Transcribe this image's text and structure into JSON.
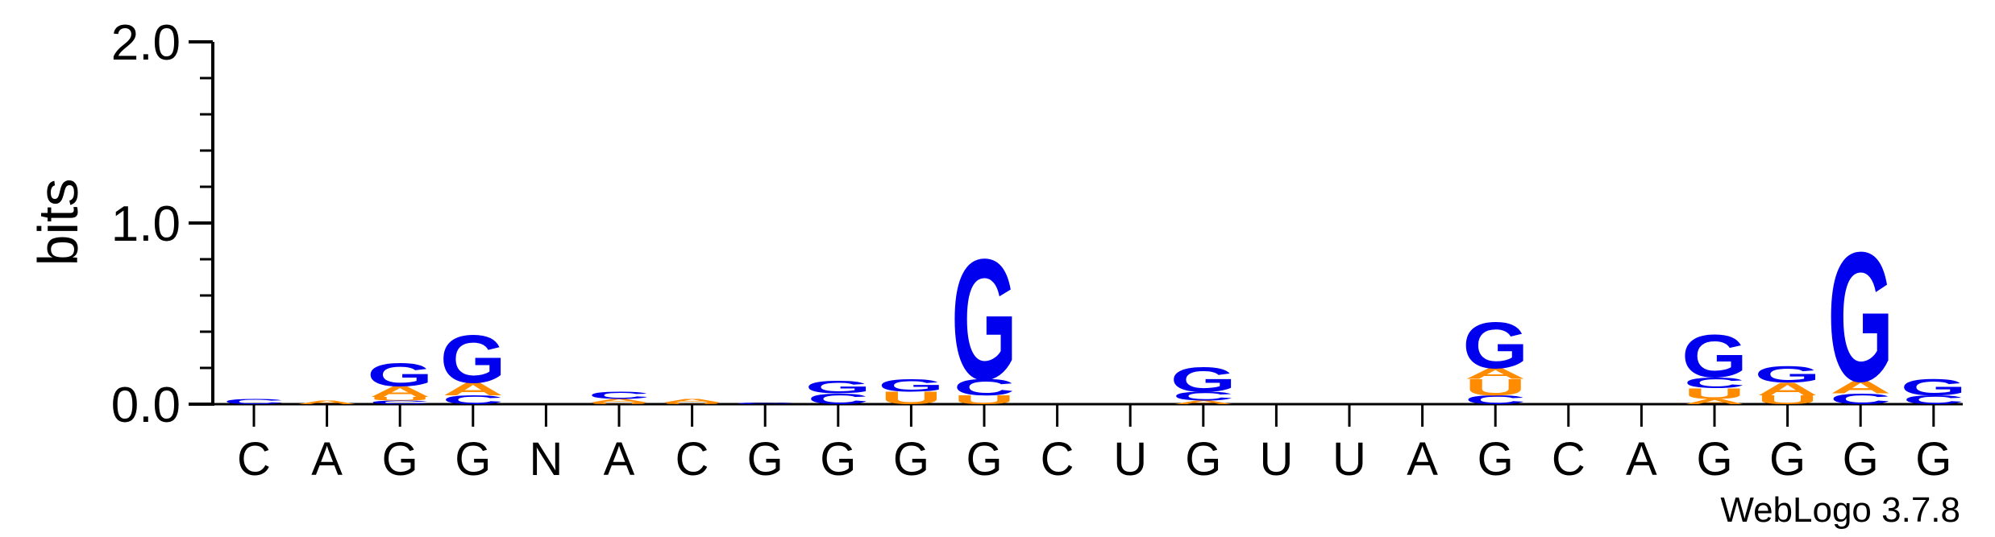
{
  "chart_data": {
    "type": "sequence-logo",
    "ylabel": "bits",
    "ylim": [
      0,
      2.0
    ],
    "y_ticks": [
      "0.0",
      "1.0",
      "2.0"
    ],
    "y_tick_values": [
      0,
      1.0,
      2.0
    ],
    "positions": [
      "C",
      "A",
      "G",
      "G",
      "N",
      "A",
      "C",
      "G",
      "G",
      "G",
      "G",
      "C",
      "U",
      "G",
      "U",
      "U",
      "A",
      "G",
      "C",
      "A",
      "G",
      "G",
      "G",
      "G"
    ],
    "colors": {
      "G": "#0000ee",
      "C": "#0000ee",
      "A": "#ff8c00",
      "U": "#ff8c00"
    },
    "stacks": [
      [
        {
          "letter": "C",
          "bits": 0.03
        }
      ],
      [
        {
          "letter": "A",
          "bits": 0.02
        }
      ],
      [
        {
          "letter": "C",
          "bits": 0.02
        },
        {
          "letter": "U",
          "bits": 0.02
        },
        {
          "letter": "A",
          "bits": 0.06
        },
        {
          "letter": "G",
          "bits": 0.13
        }
      ],
      [
        {
          "letter": "C",
          "bits": 0.05
        },
        {
          "letter": "A",
          "bits": 0.07
        },
        {
          "letter": "G",
          "bits": 0.27
        }
      ],
      [],
      [
        {
          "letter": "U",
          "bits": 0.01
        },
        {
          "letter": "A",
          "bits": 0.02
        },
        {
          "letter": "C",
          "bits": 0.04
        }
      ],
      [
        {
          "letter": "U",
          "bits": 0.01
        },
        {
          "letter": "A",
          "bits": 0.02
        }
      ],
      [
        {
          "letter": "C",
          "bits": 0.01
        }
      ],
      [
        {
          "letter": "C",
          "bits": 0.06
        },
        {
          "letter": "G",
          "bits": 0.07
        }
      ],
      [
        {
          "letter": "U",
          "bits": 0.07
        },
        {
          "letter": "G",
          "bits": 0.07
        }
      ],
      [
        {
          "letter": "U",
          "bits": 0.05
        },
        {
          "letter": "C",
          "bits": 0.09
        },
        {
          "letter": "G",
          "bits": 0.68
        }
      ],
      [],
      [],
      [
        {
          "letter": "A",
          "bits": 0.02
        },
        {
          "letter": "C",
          "bits": 0.05
        },
        {
          "letter": "G",
          "bits": 0.14
        }
      ],
      [],
      [],
      [],
      [
        {
          "letter": "C",
          "bits": 0.05
        },
        {
          "letter": "U",
          "bits": 0.09
        },
        {
          "letter": "A",
          "bits": 0.06
        },
        {
          "letter": "G",
          "bits": 0.26
        }
      ],
      [],
      [],
      [
        {
          "letter": "A",
          "bits": 0.03
        },
        {
          "letter": "U",
          "bits": 0.06
        },
        {
          "letter": "C",
          "bits": 0.06
        },
        {
          "letter": "G",
          "bits": 0.24
        }
      ],
      [
        {
          "letter": "U",
          "bits": 0.05
        },
        {
          "letter": "A",
          "bits": 0.07
        },
        {
          "letter": "G",
          "bits": 0.09
        }
      ],
      [
        {
          "letter": "C",
          "bits": 0.06
        },
        {
          "letter": "A",
          "bits": 0.07
        },
        {
          "letter": "G",
          "bits": 0.73
        }
      ],
      [
        {
          "letter": "C",
          "bits": 0.05
        },
        {
          "letter": "G",
          "bits": 0.09
        }
      ]
    ]
  },
  "credit": "WebLogo 3.7.8"
}
